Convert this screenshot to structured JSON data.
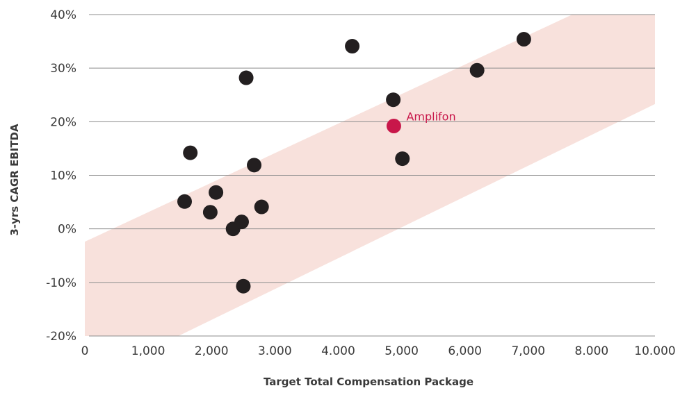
{
  "chart_data": {
    "type": "scatter",
    "xlabel": "Target Total Compensation Package",
    "ylabel": "3-yrs CAGR EBITDA",
    "xlim": [
      0,
      10000
    ],
    "ylim": [
      -20,
      40
    ],
    "x_ticks": [
      "0",
      "1,000",
      "2,000",
      "3.000",
      "4.000",
      "5,000",
      "6,000",
      "7,000",
      "8.000",
      "10.000"
    ],
    "y_ticks": [
      "40%",
      "30%",
      "20%",
      "10%",
      "0%",
      "-10%",
      "-20%"
    ],
    "grid": "horizontal",
    "band": {
      "lower_at_x0": -28.5,
      "lower_at_x10000": 23.3,
      "upper_at_x0": -2.4,
      "upper_at_x10000": 47.2,
      "color": "#f8e1dc"
    },
    "points": [
      {
        "x": 1750,
        "y": 5.1
      },
      {
        "x": 1850,
        "y": 14.2
      },
      {
        "x": 2200,
        "y": 3.1
      },
      {
        "x": 2300,
        "y": 6.8
      },
      {
        "x": 2600,
        "y": 0.0
      },
      {
        "x": 2750,
        "y": 1.3
      },
      {
        "x": 2780,
        "y": -10.7
      },
      {
        "x": 2830,
        "y": 28.2
      },
      {
        "x": 2970,
        "y": 11.9
      },
      {
        "x": 3100,
        "y": 4.1
      },
      {
        "x": 4690,
        "y": 34.1
      },
      {
        "x": 5410,
        "y": 24.1
      },
      {
        "x": 5570,
        "y": 13.1
      },
      {
        "x": 6880,
        "y": 29.6
      },
      {
        "x": 7700,
        "y": 35.4
      }
    ],
    "highlight": {
      "label": "Amplifon",
      "x": 5420,
      "y": 19.2
    },
    "colors": {
      "points": "#231f20",
      "highlight": "#c8174a",
      "grid": "#8c8c8c"
    }
  }
}
